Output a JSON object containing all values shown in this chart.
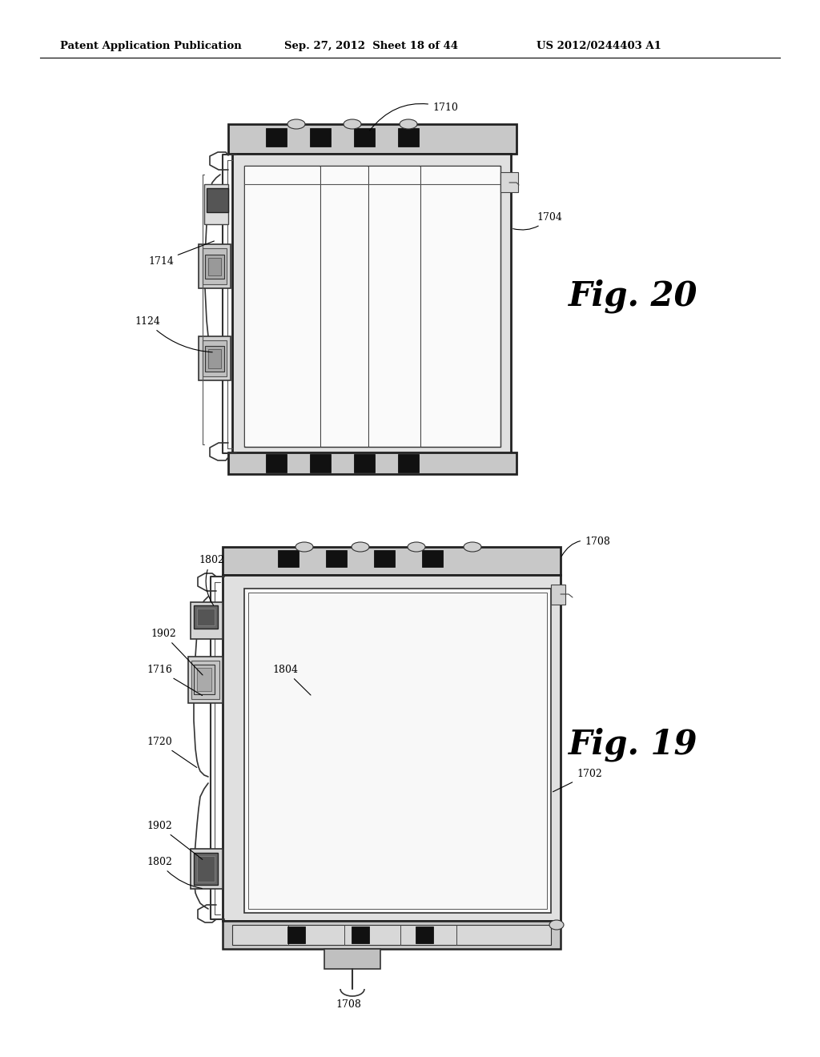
{
  "bg_color": "#ffffff",
  "header_text": "Patent Application Publication",
  "header_date": "Sep. 27, 2012  Sheet 18 of 44",
  "header_patent": "US 2012/0244403 A1",
  "fig20_label": "Fig. 20",
  "fig19_label": "Fig. 19",
  "line_color": "#1a1a1a",
  "gray_light": "#e8e8e8",
  "gray_med": "#c0c0c0",
  "gray_dark": "#888888",
  "black_clip": "#111111"
}
